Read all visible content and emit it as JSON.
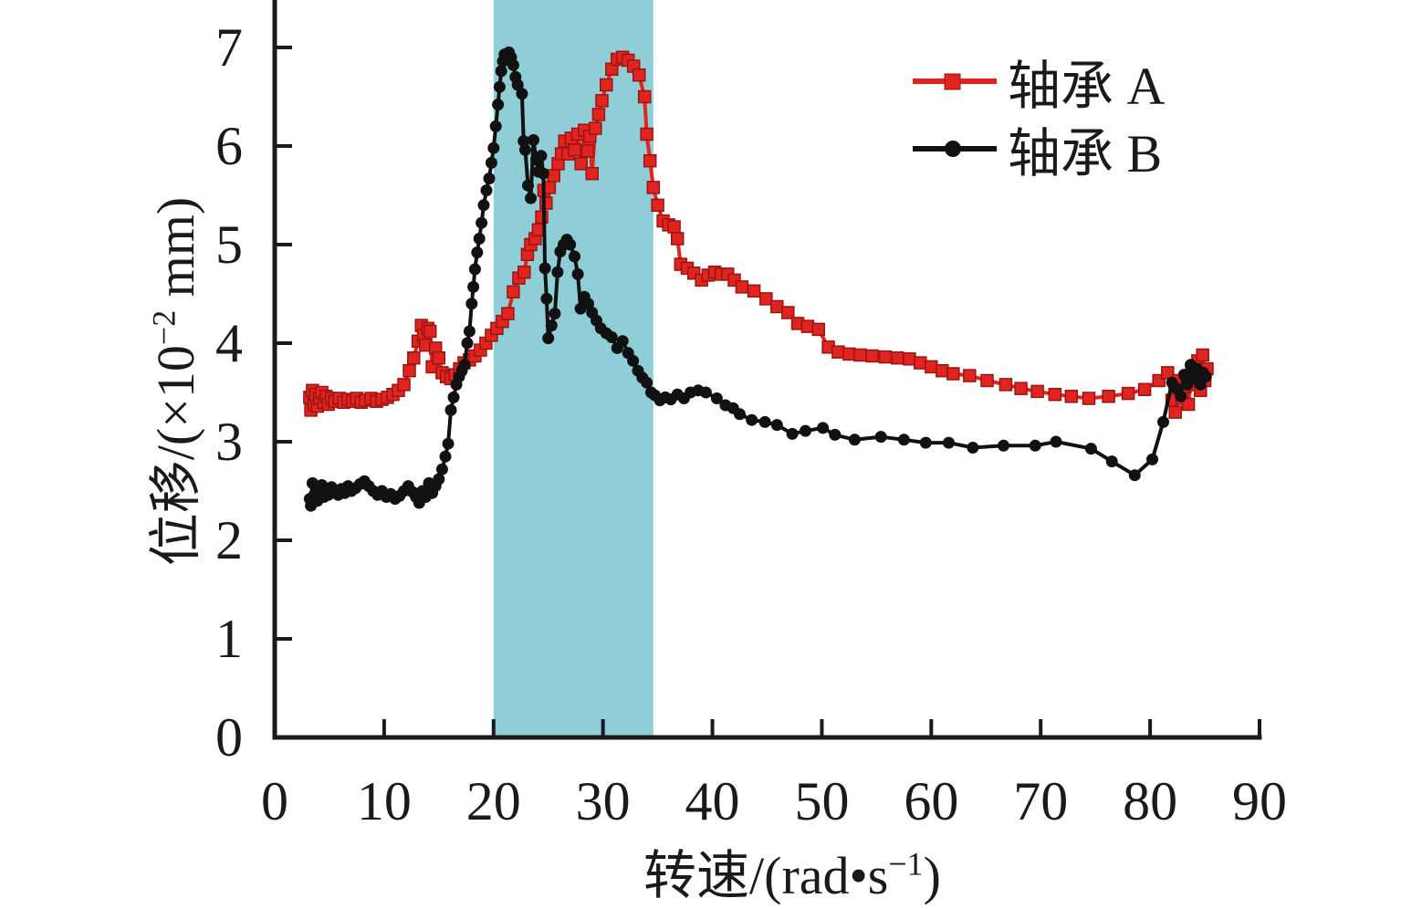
{
  "legend": {
    "items": [
      {
        "label": "轴承 A",
        "series": "bearing-a"
      },
      {
        "label": "轴承 B",
        "series": "bearing-b"
      }
    ]
  },
  "axis_labels": {
    "x": {
      "prefix": "转速/(rad•s",
      "sup": "−1",
      "suffix": ")"
    },
    "y": {
      "prefix": "位移/(×10",
      "sup": "−2",
      "suffix": " mm)"
    }
  },
  "chart_data": {
    "type": "line",
    "title": "",
    "xlabel": "转速/(rad•s⁻¹)",
    "ylabel": "位移/(×10⁻² mm)",
    "xlim": [
      0,
      90
    ],
    "ylim": [
      0,
      7
    ],
    "x_ticks": [
      0,
      10,
      20,
      30,
      40,
      50,
      60,
      70,
      80,
      90
    ],
    "y_ticks": [
      0,
      1,
      2,
      3,
      4,
      5,
      6,
      7
    ],
    "grid": false,
    "legend_position": "upper right",
    "axis_color": "#1a1a1a",
    "highlight_band": {
      "x1": 20,
      "x2": 34.6,
      "color": "#8FCED6"
    },
    "series": [
      {
        "name": "轴承 A",
        "marker": "square",
        "color": "#E02420",
        "marker_edge": "#9C1411",
        "points": [
          [
            3.2,
            3.45
          ],
          [
            3.3,
            3.32
          ],
          [
            3.45,
            3.52
          ],
          [
            3.6,
            3.38
          ],
          [
            3.75,
            3.48
          ],
          [
            3.9,
            3.36
          ],
          [
            4.1,
            3.44
          ],
          [
            4.3,
            3.5
          ],
          [
            4.5,
            3.4
          ],
          [
            4.7,
            3.46
          ],
          [
            4.9,
            3.38
          ],
          [
            5.2,
            3.44
          ],
          [
            5.5,
            3.41
          ],
          [
            5.9,
            3.44
          ],
          [
            6.3,
            3.4
          ],
          [
            6.7,
            3.43
          ],
          [
            7.1,
            3.41
          ],
          [
            7.5,
            3.44
          ],
          [
            7.9,
            3.4
          ],
          [
            8.3,
            3.42
          ],
          [
            8.8,
            3.44
          ],
          [
            9.3,
            3.41
          ],
          [
            9.8,
            3.43
          ],
          [
            10.3,
            3.45
          ],
          [
            10.8,
            3.48
          ],
          [
            11.3,
            3.52
          ],
          [
            11.8,
            3.58
          ],
          [
            12.3,
            3.72
          ],
          [
            12.7,
            3.85
          ],
          [
            13.1,
            4.02
          ],
          [
            13.4,
            4.18
          ],
          [
            13.6,
            4.08
          ],
          [
            13.8,
            3.98
          ],
          [
            14.0,
            4.15
          ],
          [
            14.2,
            4.12
          ],
          [
            14.4,
            3.76
          ],
          [
            14.7,
            3.95
          ],
          [
            15.0,
            3.85
          ],
          [
            15.3,
            3.7
          ],
          [
            15.7,
            3.66
          ],
          [
            16.1,
            3.64
          ],
          [
            16.5,
            3.68
          ],
          [
            16.9,
            3.74
          ],
          [
            17.3,
            3.8
          ],
          [
            17.8,
            3.83
          ],
          [
            18.3,
            3.87
          ],
          [
            18.8,
            3.93
          ],
          [
            19.3,
            4.0
          ],
          [
            19.8,
            4.08
          ],
          [
            20.3,
            4.15
          ],
          [
            20.8,
            4.22
          ],
          [
            21.3,
            4.3
          ],
          [
            21.8,
            4.52
          ],
          [
            22.3,
            4.66
          ],
          [
            22.8,
            4.72
          ],
          [
            23.1,
            4.9
          ],
          [
            23.4,
            5.0
          ],
          [
            23.8,
            5.06
          ],
          [
            24.1,
            5.15
          ],
          [
            24.4,
            5.28
          ],
          [
            24.6,
            5.55
          ],
          [
            24.8,
            5.42
          ],
          [
            25.1,
            5.58
          ],
          [
            25.5,
            5.7
          ],
          [
            25.9,
            5.82
          ],
          [
            26.2,
            5.92
          ],
          [
            26.5,
            6.05
          ],
          [
            26.8,
            5.92
          ],
          [
            27.1,
            6.08
          ],
          [
            27.4,
            5.96
          ],
          [
            27.7,
            6.12
          ],
          [
            28.0,
            5.82
          ],
          [
            28.3,
            6.16
          ],
          [
            28.6,
            5.95
          ],
          [
            28.8,
            6.1
          ],
          [
            29.0,
            5.72
          ],
          [
            29.3,
            6.18
          ],
          [
            29.6,
            6.32
          ],
          [
            29.9,
            6.46
          ],
          [
            30.3,
            6.62
          ],
          [
            30.8,
            6.78
          ],
          [
            31.3,
            6.88
          ],
          [
            31.8,
            6.9
          ],
          [
            32.3,
            6.87
          ],
          [
            32.8,
            6.81
          ],
          [
            33.3,
            6.72
          ],
          [
            33.8,
            6.5
          ],
          [
            34.0,
            6.12
          ],
          [
            34.3,
            5.85
          ],
          [
            34.6,
            5.58
          ],
          [
            35.0,
            5.4
          ],
          [
            35.5,
            5.24
          ],
          [
            36.0,
            5.2
          ],
          [
            36.5,
            5.18
          ],
          [
            36.8,
            5.06
          ],
          [
            37.1,
            4.8
          ],
          [
            37.7,
            4.76
          ],
          [
            38.3,
            4.71
          ],
          [
            39.0,
            4.64
          ],
          [
            39.6,
            4.69
          ],
          [
            40.2,
            4.72
          ],
          [
            40.8,
            4.7
          ],
          [
            41.4,
            4.7
          ],
          [
            42.0,
            4.64
          ],
          [
            42.7,
            4.57
          ],
          [
            43.8,
            4.53
          ],
          [
            44.9,
            4.45
          ],
          [
            45.9,
            4.37
          ],
          [
            46.9,
            4.31
          ],
          [
            47.8,
            4.2
          ],
          [
            48.7,
            4.17
          ],
          [
            49.7,
            4.14
          ],
          [
            50.6,
            3.96
          ],
          [
            51.5,
            3.91
          ],
          [
            52.5,
            3.89
          ],
          [
            53.5,
            3.88
          ],
          [
            54.6,
            3.87
          ],
          [
            55.8,
            3.86
          ],
          [
            56.9,
            3.85
          ],
          [
            58.0,
            3.84
          ],
          [
            59.0,
            3.8
          ],
          [
            60.0,
            3.76
          ],
          [
            61.0,
            3.72
          ],
          [
            62.0,
            3.69
          ],
          [
            63.5,
            3.67
          ],
          [
            65.1,
            3.62
          ],
          [
            66.8,
            3.58
          ],
          [
            68.2,
            3.54
          ],
          [
            69.7,
            3.51
          ],
          [
            71.3,
            3.48
          ],
          [
            72.8,
            3.46
          ],
          [
            74.4,
            3.44
          ],
          [
            76.2,
            3.46
          ],
          [
            78.0,
            3.49
          ],
          [
            79.5,
            3.53
          ],
          [
            80.8,
            3.62
          ],
          [
            81.6,
            3.7
          ],
          [
            82.0,
            3.42
          ],
          [
            82.3,
            3.3
          ],
          [
            82.6,
            3.62
          ],
          [
            82.9,
            3.44
          ],
          [
            83.2,
            3.56
          ],
          [
            83.5,
            3.38
          ],
          [
            83.8,
            3.72
          ],
          [
            84.1,
            3.58
          ],
          [
            84.35,
            3.82
          ],
          [
            84.6,
            3.52
          ],
          [
            84.8,
            3.88
          ],
          [
            85.0,
            3.62
          ],
          [
            85.2,
            3.74
          ]
        ]
      },
      {
        "name": "轴承 B",
        "marker": "circle",
        "color": "#111111",
        "marker_edge": "#111111",
        "points": [
          [
            3.2,
            2.42
          ],
          [
            3.3,
            2.35
          ],
          [
            3.45,
            2.58
          ],
          [
            3.6,
            2.46
          ],
          [
            3.75,
            2.52
          ],
          [
            3.9,
            2.4
          ],
          [
            4.1,
            2.5
          ],
          [
            4.3,
            2.56
          ],
          [
            4.5,
            2.44
          ],
          [
            4.7,
            2.52
          ],
          [
            4.9,
            2.46
          ],
          [
            5.2,
            2.54
          ],
          [
            5.5,
            2.5
          ],
          [
            5.8,
            2.46
          ],
          [
            6.1,
            2.52
          ],
          [
            6.4,
            2.48
          ],
          [
            6.7,
            2.55
          ],
          [
            7.0,
            2.5
          ],
          [
            7.4,
            2.53
          ],
          [
            7.8,
            2.57
          ],
          [
            8.2,
            2.6
          ],
          [
            8.6,
            2.55
          ],
          [
            9.0,
            2.5
          ],
          [
            9.4,
            2.46
          ],
          [
            9.8,
            2.5
          ],
          [
            10.2,
            2.44
          ],
          [
            10.6,
            2.47
          ],
          [
            11.0,
            2.42
          ],
          [
            11.4,
            2.45
          ],
          [
            11.8,
            2.5
          ],
          [
            12.2,
            2.55
          ],
          [
            12.6,
            2.49
          ],
          [
            12.9,
            2.44
          ],
          [
            13.2,
            2.38
          ],
          [
            13.5,
            2.5
          ],
          [
            13.8,
            2.44
          ],
          [
            14.1,
            2.58
          ],
          [
            14.4,
            2.48
          ],
          [
            14.7,
            2.55
          ],
          [
            15.0,
            2.62
          ],
          [
            15.3,
            2.72
          ],
          [
            15.6,
            2.85
          ],
          [
            15.85,
            2.98
          ],
          [
            16.1,
            3.32
          ],
          [
            16.35,
            3.45
          ],
          [
            16.6,
            3.58
          ],
          [
            16.85,
            3.66
          ],
          [
            17.1,
            3.72
          ],
          [
            17.35,
            3.78
          ],
          [
            17.6,
            4.0
          ],
          [
            17.8,
            4.12
          ],
          [
            18.0,
            4.4
          ],
          [
            18.15,
            4.57
          ],
          [
            18.3,
            4.75
          ],
          [
            18.5,
            4.92
          ],
          [
            18.7,
            5.06
          ],
          [
            18.9,
            5.22
          ],
          [
            19.1,
            5.4
          ],
          [
            19.35,
            5.55
          ],
          [
            19.6,
            5.67
          ],
          [
            19.8,
            5.83
          ],
          [
            20.0,
            5.98
          ],
          [
            20.2,
            6.2
          ],
          [
            20.4,
            6.42
          ],
          [
            20.55,
            6.6
          ],
          [
            20.7,
            6.76
          ],
          [
            20.85,
            6.86
          ],
          [
            21.0,
            6.93
          ],
          [
            21.2,
            6.88
          ],
          [
            21.4,
            6.95
          ],
          [
            21.6,
            6.9
          ],
          [
            21.8,
            6.82
          ],
          [
            22.0,
            6.7
          ],
          [
            22.2,
            6.62
          ],
          [
            22.6,
            6.53
          ],
          [
            22.75,
            6.05
          ],
          [
            22.9,
            5.96
          ],
          [
            23.15,
            5.6
          ],
          [
            23.4,
            5.47
          ],
          [
            23.65,
            6.06
          ],
          [
            23.9,
            5.86
          ],
          [
            24.1,
            5.74
          ],
          [
            24.35,
            5.9
          ],
          [
            24.55,
            5.72
          ],
          [
            24.7,
            4.76
          ],
          [
            24.85,
            4.45
          ],
          [
            25.0,
            4.05
          ],
          [
            25.3,
            4.18
          ],
          [
            25.6,
            4.3
          ],
          [
            25.85,
            4.72
          ],
          [
            26.1,
            4.93
          ],
          [
            26.4,
            5.0
          ],
          [
            26.7,
            5.05
          ],
          [
            27.0,
            5.0
          ],
          [
            27.4,
            4.88
          ],
          [
            27.7,
            4.7
          ],
          [
            27.95,
            4.35
          ],
          [
            28.3,
            4.47
          ],
          [
            28.65,
            4.4
          ],
          [
            29.0,
            4.31
          ],
          [
            29.4,
            4.23
          ],
          [
            29.8,
            4.15
          ],
          [
            30.3,
            4.1
          ],
          [
            30.8,
            4.06
          ],
          [
            31.3,
            3.95
          ],
          [
            31.8,
            4.02
          ],
          [
            32.3,
            3.9
          ],
          [
            32.75,
            3.82
          ],
          [
            33.2,
            3.72
          ],
          [
            33.6,
            3.65
          ],
          [
            34.0,
            3.6
          ],
          [
            34.4,
            3.5
          ],
          [
            34.75,
            3.47
          ],
          [
            35.2,
            3.42
          ],
          [
            35.7,
            3.45
          ],
          [
            36.2,
            3.43
          ],
          [
            36.8,
            3.48
          ],
          [
            37.4,
            3.44
          ],
          [
            38.0,
            3.5
          ],
          [
            38.7,
            3.52
          ],
          [
            39.4,
            3.5
          ],
          [
            40.4,
            3.44
          ],
          [
            41.2,
            3.37
          ],
          [
            41.9,
            3.34
          ],
          [
            42.5,
            3.28
          ],
          [
            43.6,
            3.22
          ],
          [
            44.8,
            3.2
          ],
          [
            45.9,
            3.17
          ],
          [
            47.3,
            3.08
          ],
          [
            48.5,
            3.11
          ],
          [
            50.1,
            3.14
          ],
          [
            51.2,
            3.07
          ],
          [
            53.0,
            3.02
          ],
          [
            55.4,
            3.05
          ],
          [
            57.5,
            3.02
          ],
          [
            59.5,
            2.99
          ],
          [
            61.6,
            2.99
          ],
          [
            63.8,
            2.94
          ],
          [
            66.6,
            2.96
          ],
          [
            69.5,
            2.96
          ],
          [
            71.4,
            3.0
          ],
          [
            74.6,
            2.93
          ],
          [
            76.5,
            2.8
          ],
          [
            78.6,
            2.66
          ],
          [
            80.2,
            2.82
          ],
          [
            81.2,
            3.2
          ],
          [
            82.0,
            3.6
          ],
          [
            82.4,
            3.54
          ],
          [
            82.8,
            3.46
          ],
          [
            83.1,
            3.68
          ],
          [
            83.4,
            3.58
          ],
          [
            83.7,
            3.78
          ],
          [
            84.0,
            3.64
          ],
          [
            84.3,
            3.74
          ],
          [
            84.6,
            3.58
          ],
          [
            84.85,
            3.7
          ],
          [
            85.1,
            3.66
          ]
        ]
      }
    ]
  }
}
